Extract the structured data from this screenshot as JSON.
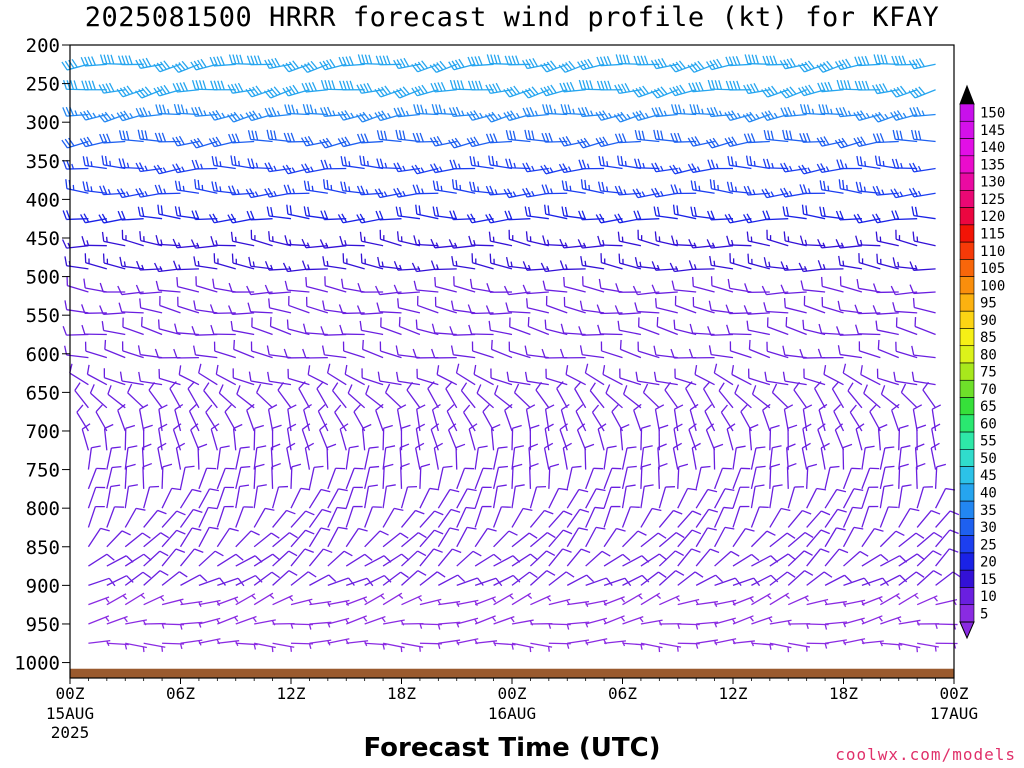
{
  "title": "2025081500 HRRR forecast wind profile (kt) for KFAY",
  "credit": "coolwx.com/models",
  "chart_data": {
    "type": "wind-barb time-height",
    "title": "2025081500 HRRR forecast wind profile (kt) for KFAY",
    "xlabel": "Forecast Time (UTC)",
    "ylabel": "",
    "y_ticks": [
      200,
      250,
      300,
      350,
      400,
      450,
      500,
      550,
      600,
      650,
      700,
      750,
      800,
      850,
      900,
      950,
      1000
    ],
    "y_range": [
      200,
      1000
    ],
    "x_ticks": [
      {
        "hour": 0,
        "label": "00Z",
        "date": "15AUG",
        "year": "2025"
      },
      {
        "hour": 6,
        "label": "06Z",
        "date": "",
        "year": ""
      },
      {
        "hour": 12,
        "label": "12Z",
        "date": "",
        "year": ""
      },
      {
        "hour": 18,
        "label": "18Z",
        "date": "",
        "year": ""
      },
      {
        "hour": 24,
        "label": "00Z",
        "date": "16AUG",
        "year": ""
      },
      {
        "hour": 30,
        "label": "06Z",
        "date": "",
        "year": ""
      },
      {
        "hour": 36,
        "label": "12Z",
        "date": "",
        "year": ""
      },
      {
        "hour": 42,
        "label": "18Z",
        "date": "",
        "year": ""
      },
      {
        "hour": 48,
        "label": "00Z",
        "date": "17AUG",
        "year": ""
      }
    ],
    "x_range_hours": [
      0,
      48
    ],
    "time_step_hours": 1,
    "upper_levels": [
      {
        "p": 225,
        "dir": 260,
        "spd": 40
      },
      {
        "p": 258,
        "dir": 260,
        "spd": 40
      },
      {
        "p": 290,
        "dir": 262,
        "spd": 35
      },
      {
        "p": 325,
        "dir": 265,
        "spd": 30
      },
      {
        "p": 360,
        "dir": 268,
        "spd": 25
      },
      {
        "p": 392,
        "dir": 270,
        "spd": 25
      },
      {
        "p": 425,
        "dir": 270,
        "spd": 20
      }
    ],
    "lower_levels": [
      {
        "p": 460,
        "dir": 275,
        "spd": 15
      },
      {
        "p": 490,
        "dir": 275,
        "spd": 15
      },
      {
        "p": 520,
        "dir": 275,
        "spd": 10
      },
      {
        "p": 547,
        "dir": 278,
        "spd": 10
      },
      {
        "p": 575,
        "dir": 280,
        "spd": 10
      },
      {
        "p": 605,
        "dir": 280,
        "spd": 10
      },
      {
        "p": 640,
        "dir": 290,
        "spd": 10
      },
      {
        "p": 670,
        "dir": 320,
        "spd": 10
      },
      {
        "p": 700,
        "dir": 340,
        "spd": 10
      },
      {
        "p": 725,
        "dir": 350,
        "spd": 10
      },
      {
        "p": 750,
        "dir": 0,
        "spd": 10
      },
      {
        "p": 775,
        "dir": 10,
        "spd": 10
      },
      {
        "p": 800,
        "dir": 20,
        "spd": 10
      },
      {
        "p": 825,
        "dir": 30,
        "spd": 10
      },
      {
        "p": 850,
        "dir": 40,
        "spd": 10
      },
      {
        "p": 875,
        "dir": 50,
        "spd": 10
      },
      {
        "p": 900,
        "dir": 60,
        "spd": 10
      },
      {
        "p": 925,
        "dir": 70,
        "spd": 5
      },
      {
        "p": 950,
        "dir": 80,
        "spd": 5
      },
      {
        "p": 975,
        "dir": 90,
        "spd": 5
      }
    ],
    "ground_level_hpa": 1008,
    "ground_color": "#9a5a2e",
    "colorbar": {
      "labels": [
        5,
        10,
        15,
        20,
        25,
        30,
        35,
        40,
        45,
        50,
        55,
        60,
        65,
        70,
        75,
        80,
        85,
        90,
        95,
        100,
        105,
        110,
        115,
        120,
        125,
        130,
        135,
        140,
        145,
        150
      ],
      "colors": [
        "#8a2be2",
        "#6a1fe0",
        "#3311d6",
        "#1a22e6",
        "#1c3ff0",
        "#1e60f0",
        "#2286f2",
        "#26a5ef",
        "#2cc2e8",
        "#30dccc",
        "#2ee8a8",
        "#2ae870",
        "#36e03a",
        "#6ee02a",
        "#a8e81c",
        "#dcf21a",
        "#f6f016",
        "#fcd414",
        "#fcb210",
        "#fa8e0c",
        "#f8660a",
        "#f63a08",
        "#f21406",
        "#ec0640",
        "#ea0874",
        "#ea0aa2",
        "#ea0ccc",
        "#e20fe6",
        "#d410ea",
        "#c810ec"
      ],
      "top_arrow": "#000000",
      "bottom_arrow": "#8a2be2"
    }
  }
}
